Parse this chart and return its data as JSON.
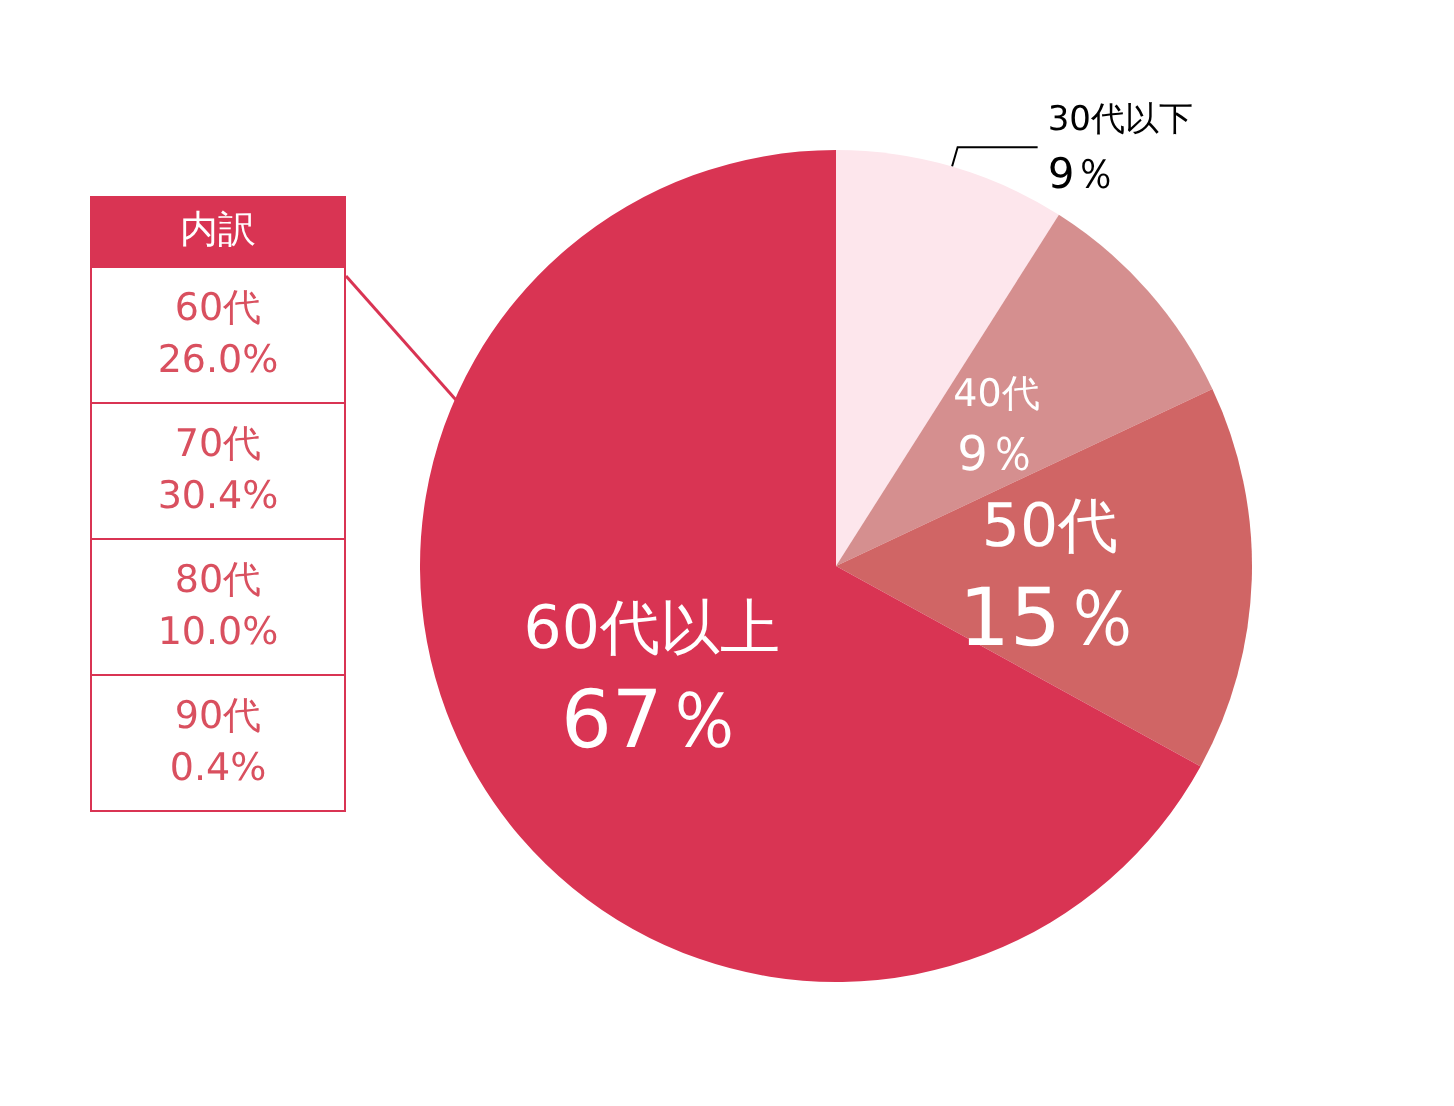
{
  "chart_data": {
    "type": "pie",
    "categories": [
      "30代以下",
      "40代",
      "50代",
      "60代以上"
    ],
    "values": [
      9,
      9,
      15,
      67
    ],
    "value_labels": [
      "9％",
      "9％",
      "15％",
      "67％"
    ],
    "colors": [
      "#fde6ec",
      "#d58f8f",
      "#d06565",
      "#d93453"
    ],
    "annotations": [
      "内訳",
      "60代\n26.0%",
      "70代\n30.4%",
      "80代\n10.0%",
      "90代\n0.4%"
    ],
    "legend": false
  }
}
